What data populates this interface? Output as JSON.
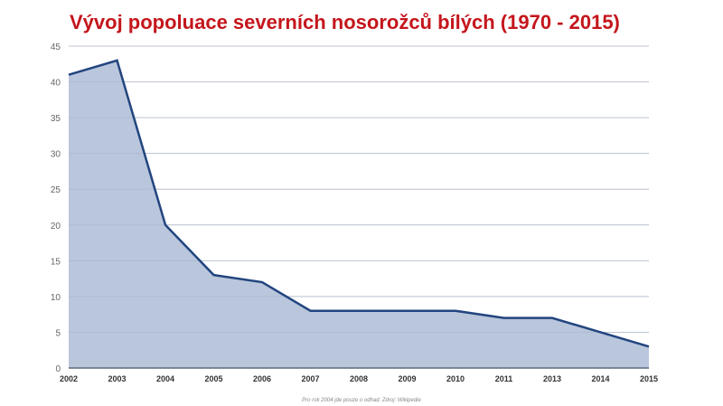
{
  "title": "Vývoj popoluace severních nosorožců bílých (1970 - 2015)",
  "footnote": "Pro rok 2004 jde pouze o odhad. Zdroj: Wikipedie",
  "colors": {
    "title": "#c4161c",
    "line": "#22457f",
    "fill": "#b9c6dc",
    "grid": "#dddddd",
    "axis": "#5a6a7a"
  },
  "chart_data": {
    "type": "area",
    "title": "Vývoj popoluace severních nosorožců bílých (1970 - 2015)",
    "categories": [
      "2002",
      "2003",
      "2004",
      "2005",
      "2006",
      "2007",
      "2008",
      "2009",
      "2010",
      "2011",
      "2013",
      "2014",
      "2015"
    ],
    "values": [
      41,
      43,
      20,
      13,
      12,
      8,
      8,
      8,
      8,
      7,
      7,
      5,
      3
    ],
    "xlabel": "",
    "ylabel": "",
    "ylim": [
      0,
      45
    ],
    "yticks": [
      0,
      5,
      10,
      15,
      20,
      25,
      30,
      35,
      40,
      45
    ],
    "grid": true,
    "legend": "none",
    "annotation": "Pro rok 2004 jde pouze o odhad. Zdroj: Wikipedie"
  }
}
